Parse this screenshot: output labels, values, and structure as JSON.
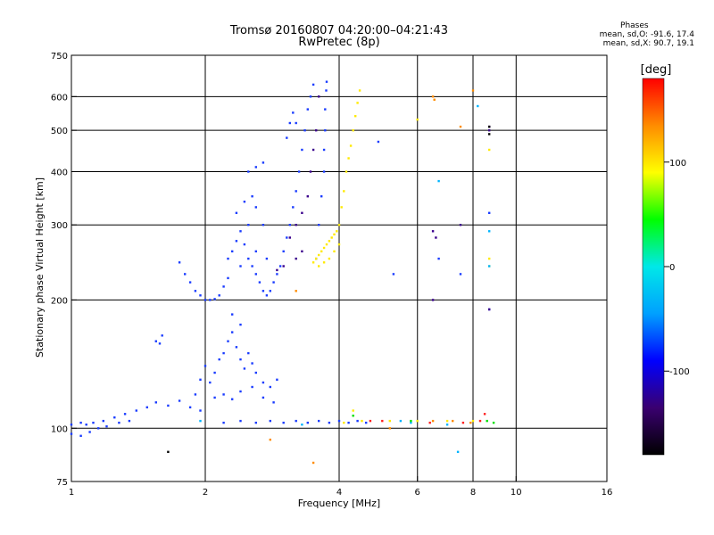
{
  "header": {
    "title": "Tromsø 20160807 04:20:00–04:21:43",
    "subtitle": "RwPretec (8p)"
  },
  "phase_note": {
    "heading": "Phases",
    "line_o": "mean, sd,O: -91.6, 17.4",
    "line_x": "mean, sd,X:  90.7, 19.1"
  },
  "chart_data": {
    "type": "scatter",
    "xlabel": "Frequency [MHz]",
    "ylabel": "Stationary phase Virtual Height [km]",
    "x_scale": "log",
    "y_scale": "log",
    "xlim": [
      1,
      16
    ],
    "ylim": [
      75,
      750
    ],
    "x_ticks": [
      1,
      2,
      4,
      6,
      8,
      10,
      16
    ],
    "y_ticks": [
      75,
      100,
      200,
      300,
      400,
      500,
      600,
      750
    ],
    "grid": true,
    "grid_x": [
      2,
      4,
      6,
      8,
      10
    ],
    "grid_y": [
      100,
      200,
      300,
      400,
      500,
      600
    ],
    "colorbar": {
      "label": "[deg]",
      "range": [
        -180,
        180
      ],
      "ticks": [
        100,
        0,
        -100
      ],
      "stops": [
        "#000000",
        "#3a0070",
        "#0000ff",
        "#00a0ff",
        "#00e8e8",
        "#00ff00",
        "#ffff00",
        "#ff8c00",
        "#ff0000"
      ]
    },
    "series": [
      {
        "color": "#1a3cff",
        "points": [
          [
            1.0,
            102
          ],
          [
            1.05,
            103
          ],
          [
            1.08,
            102
          ],
          [
            1.12,
            103
          ],
          [
            1.18,
            104
          ],
          [
            1.25,
            106
          ],
          [
            1.32,
            108
          ],
          [
            1.4,
            110
          ],
          [
            1.48,
            112
          ],
          [
            1.55,
            115
          ],
          [
            1.65,
            113
          ],
          [
            1.75,
            116
          ],
          [
            1.85,
            112
          ],
          [
            1.95,
            110
          ],
          [
            2.1,
            118
          ],
          [
            2.2,
            120
          ],
          [
            2.3,
            117
          ],
          [
            2.4,
            122
          ],
          [
            2.55,
            125
          ],
          [
            2.7,
            118
          ],
          [
            2.85,
            115
          ],
          [
            1.0,
            97
          ],
          [
            1.05,
            96
          ],
          [
            1.1,
            98
          ],
          [
            1.15,
            100
          ],
          [
            1.2,
            101
          ],
          [
            1.28,
            103
          ],
          [
            1.35,
            104
          ],
          [
            1.55,
            160
          ],
          [
            1.6,
            165
          ],
          [
            1.58,
            158
          ],
          [
            1.9,
            120
          ],
          [
            1.95,
            130
          ],
          [
            2.0,
            140
          ],
          [
            2.05,
            128
          ],
          [
            2.1,
            135
          ],
          [
            2.15,
            145
          ],
          [
            2.2,
            150
          ],
          [
            2.25,
            160
          ],
          [
            2.3,
            168
          ],
          [
            2.35,
            155
          ],
          [
            2.4,
            145
          ],
          [
            2.45,
            138
          ],
          [
            2.5,
            150
          ],
          [
            2.55,
            142
          ],
          [
            2.6,
            135
          ],
          [
            2.7,
            128
          ],
          [
            2.8,
            125
          ],
          [
            2.9,
            130
          ],
          [
            2.4,
            175
          ],
          [
            2.3,
            185
          ],
          [
            1.75,
            245
          ],
          [
            1.8,
            230
          ],
          [
            1.85,
            220
          ],
          [
            1.9,
            210
          ],
          [
            1.95,
            205
          ],
          [
            2.0,
            200
          ],
          [
            2.05,
            200
          ],
          [
            2.1,
            201
          ],
          [
            2.15,
            205
          ],
          [
            2.2,
            215
          ],
          [
            2.25,
            225
          ],
          [
            2.25,
            250
          ],
          [
            2.3,
            260
          ],
          [
            2.35,
            275
          ],
          [
            2.4,
            290
          ],
          [
            2.45,
            270
          ],
          [
            2.5,
            250
          ],
          [
            2.55,
            240
          ],
          [
            2.6,
            230
          ],
          [
            2.65,
            220
          ],
          [
            2.7,
            210
          ],
          [
            2.75,
            205
          ],
          [
            2.8,
            210
          ],
          [
            2.85,
            220
          ],
          [
            2.9,
            230
          ],
          [
            2.35,
            320
          ],
          [
            2.45,
            340
          ],
          [
            2.55,
            350
          ],
          [
            2.6,
            330
          ],
          [
            2.7,
            300
          ],
          [
            2.5,
            300
          ],
          [
            2.4,
            240
          ],
          [
            2.6,
            260
          ],
          [
            2.75,
            250
          ],
          [
            2.95,
            240
          ],
          [
            3.0,
            260
          ],
          [
            3.05,
            280
          ],
          [
            3.1,
            300
          ],
          [
            3.15,
            330
          ],
          [
            3.2,
            360
          ],
          [
            3.25,
            400
          ],
          [
            3.3,
            450
          ],
          [
            3.35,
            500
          ],
          [
            3.4,
            560
          ],
          [
            3.45,
            600
          ],
          [
            3.5,
            640
          ],
          [
            3.55,
            250
          ],
          [
            3.6,
            300
          ],
          [
            3.65,
            350
          ],
          [
            3.7,
            400
          ],
          [
            3.7,
            450
          ],
          [
            3.72,
            500
          ],
          [
            3.72,
            560
          ],
          [
            3.74,
            620
          ],
          [
            3.75,
            650
          ],
          [
            3.05,
            480
          ],
          [
            3.1,
            520
          ],
          [
            3.15,
            550
          ],
          [
            3.2,
            520
          ],
          [
            2.5,
            400
          ],
          [
            2.6,
            410
          ],
          [
            2.7,
            420
          ],
          [
            3.0,
            103
          ],
          [
            3.2,
            104
          ],
          [
            3.4,
            103
          ],
          [
            3.6,
            104
          ],
          [
            3.8,
            103
          ],
          [
            4.0,
            104
          ],
          [
            4.2,
            103
          ],
          [
            4.4,
            104
          ],
          [
            4.6,
            103
          ],
          [
            2.6,
            103
          ],
          [
            2.4,
            104
          ],
          [
            2.2,
            103
          ],
          [
            2.8,
            104
          ],
          [
            4.9,
            470
          ],
          [
            5.3,
            230
          ],
          [
            6.7,
            250
          ],
          [
            7.5,
            230
          ],
          [
            8.7,
            320
          ],
          [
            8.7,
            190
          ]
        ]
      },
      {
        "color": "#3a008c",
        "points": [
          [
            3.1,
            280
          ],
          [
            3.2,
            300
          ],
          [
            3.3,
            320
          ],
          [
            3.4,
            350
          ],
          [
            3.45,
            400
          ],
          [
            3.5,
            450
          ],
          [
            3.55,
            500
          ],
          [
            3.6,
            600
          ],
          [
            3.2,
            250
          ],
          [
            3.3,
            260
          ],
          [
            3.0,
            240
          ],
          [
            2.9,
            235
          ],
          [
            6.5,
            290
          ],
          [
            6.6,
            280
          ],
          [
            7.5,
            300
          ],
          [
            8.7,
            500
          ],
          [
            8.7,
            510
          ],
          [
            6.5,
            200
          ],
          [
            8.7,
            190
          ]
        ]
      },
      {
        "color": "#ffea00",
        "points": [
          [
            3.5,
            245
          ],
          [
            3.55,
            250
          ],
          [
            3.6,
            255
          ],
          [
            3.65,
            260
          ],
          [
            3.7,
            265
          ],
          [
            3.75,
            270
          ],
          [
            3.8,
            275
          ],
          [
            3.85,
            280
          ],
          [
            3.9,
            285
          ],
          [
            3.95,
            290
          ],
          [
            4.0,
            300
          ],
          [
            4.05,
            330
          ],
          [
            4.1,
            360
          ],
          [
            4.15,
            400
          ],
          [
            4.2,
            430
          ],
          [
            4.25,
            460
          ],
          [
            4.3,
            500
          ],
          [
            4.35,
            540
          ],
          [
            4.4,
            580
          ],
          [
            4.45,
            620
          ],
          [
            3.6,
            240
          ],
          [
            3.7,
            245
          ],
          [
            3.8,
            250
          ],
          [
            3.9,
            260
          ],
          [
            4.0,
            270
          ],
          [
            4.1,
            103
          ],
          [
            4.5,
            104
          ],
          [
            5.2,
            104
          ],
          [
            6.0,
            104
          ],
          [
            7.0,
            104
          ],
          [
            8.0,
            104
          ],
          [
            8.7,
            250
          ],
          [
            8.7,
            240
          ],
          [
            8.7,
            450
          ],
          [
            6.0,
            530
          ],
          [
            4.3,
            110
          ]
        ]
      },
      {
        "color": "#ff8c00",
        "points": [
          [
            6.5,
            600
          ],
          [
            6.55,
            590
          ],
          [
            7.5,
            510
          ],
          [
            8.0,
            620
          ],
          [
            3.5,
            83
          ],
          [
            2.8,
            94
          ],
          [
            3.2,
            210
          ],
          [
            5.2,
            100
          ],
          [
            7.2,
            104
          ],
          [
            6.5,
            104
          ],
          [
            7.9,
            103
          ]
        ]
      },
      {
        "color": "#00b4ff",
        "points": [
          [
            6.7,
            380
          ],
          [
            7.0,
            102
          ],
          [
            7.4,
            88
          ],
          [
            8.2,
            570
          ],
          [
            8.7,
            290
          ],
          [
            8.7,
            240
          ],
          [
            5.5,
            104
          ],
          [
            5.8,
            103
          ],
          [
            1.95,
            104
          ],
          [
            3.3,
            102
          ]
        ]
      },
      {
        "color": "#00e000",
        "points": [
          [
            5.8,
            104
          ],
          [
            8.6,
            104
          ],
          [
            8.9,
            103
          ],
          [
            4.3,
            107
          ]
        ]
      },
      {
        "color": "#ff2020",
        "points": [
          [
            6.4,
            103
          ],
          [
            7.6,
            103
          ],
          [
            8.3,
            104
          ],
          [
            8.5,
            108
          ],
          [
            4.7,
            104
          ],
          [
            5.0,
            104
          ]
        ]
      },
      {
        "color": "#000000",
        "points": [
          [
            1.65,
            88
          ],
          [
            8.7,
            510
          ],
          [
            8.7,
            490
          ]
        ]
      }
    ]
  }
}
